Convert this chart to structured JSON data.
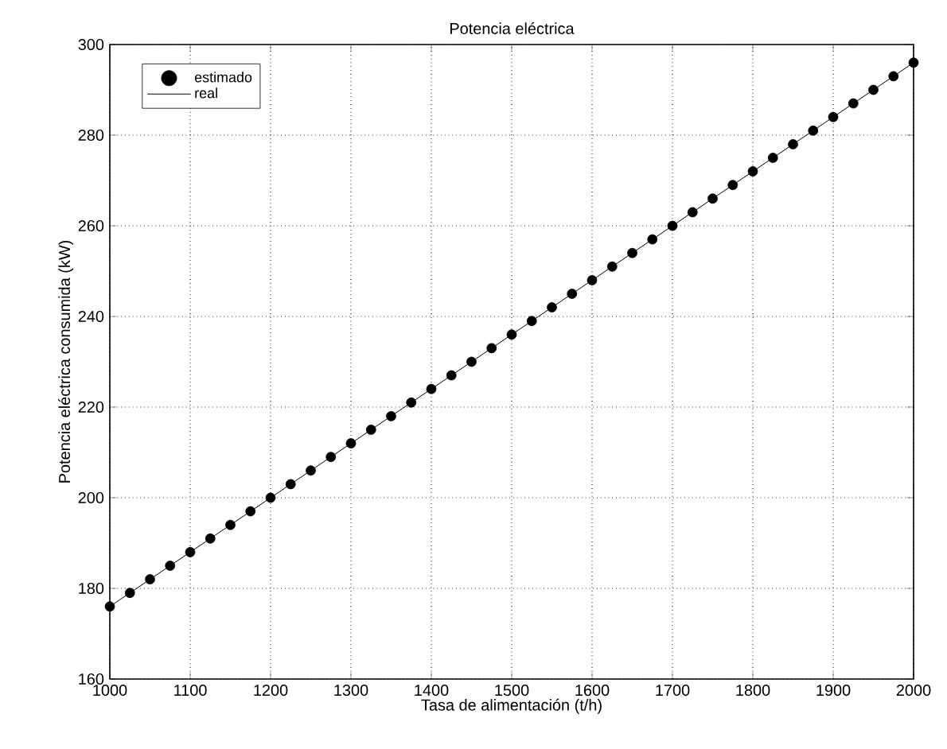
{
  "chart_data": {
    "type": "line",
    "title": "Potencia eléctrica",
    "xlabel": "Tasa de alimentación (t/h)",
    "ylabel": "Potencia eléctrica consumida (kW)",
    "x": [
      1000,
      1025,
      1050,
      1075,
      1100,
      1125,
      1150,
      1175,
      1200,
      1225,
      1250,
      1275,
      1300,
      1325,
      1350,
      1375,
      1400,
      1425,
      1450,
      1475,
      1500,
      1525,
      1550,
      1575,
      1600,
      1625,
      1650,
      1675,
      1700,
      1725,
      1750,
      1775,
      1800,
      1825,
      1850,
      1875,
      1900,
      1925,
      1950,
      1975,
      2000
    ],
    "series": [
      {
        "name": "estimado",
        "type": "scatter",
        "marker": "circle",
        "color": "#000000",
        "values": [
          176,
          179,
          182,
          185,
          188,
          191,
          194,
          197,
          200,
          203,
          206,
          209,
          212,
          215,
          218,
          221,
          224,
          227,
          230,
          233,
          236,
          239,
          242,
          245,
          248,
          251,
          254,
          257,
          260,
          263,
          266,
          269,
          272,
          275,
          278,
          281,
          284,
          287,
          290,
          293,
          296
        ]
      },
      {
        "name": "real",
        "type": "line",
        "line_style": "solid",
        "color": "#000000",
        "values": [
          176,
          179,
          182,
          185,
          188,
          191,
          194,
          197,
          200,
          203,
          206,
          209,
          212,
          215,
          218,
          221,
          224,
          227,
          230,
          233,
          236,
          239,
          242,
          245,
          248,
          251,
          254,
          257,
          260,
          263,
          266,
          269,
          272,
          275,
          278,
          281,
          284,
          287,
          290,
          293,
          296
        ]
      }
    ],
    "xlim": [
      1000,
      2000
    ],
    "xticks": [
      1000,
      1100,
      1200,
      1300,
      1400,
      1500,
      1600,
      1700,
      1800,
      1900,
      2000
    ],
    "ylim": [
      160,
      300
    ],
    "yticks": [
      160,
      180,
      200,
      220,
      240,
      260,
      280,
      300
    ],
    "grid": true,
    "legend": "top left"
  }
}
